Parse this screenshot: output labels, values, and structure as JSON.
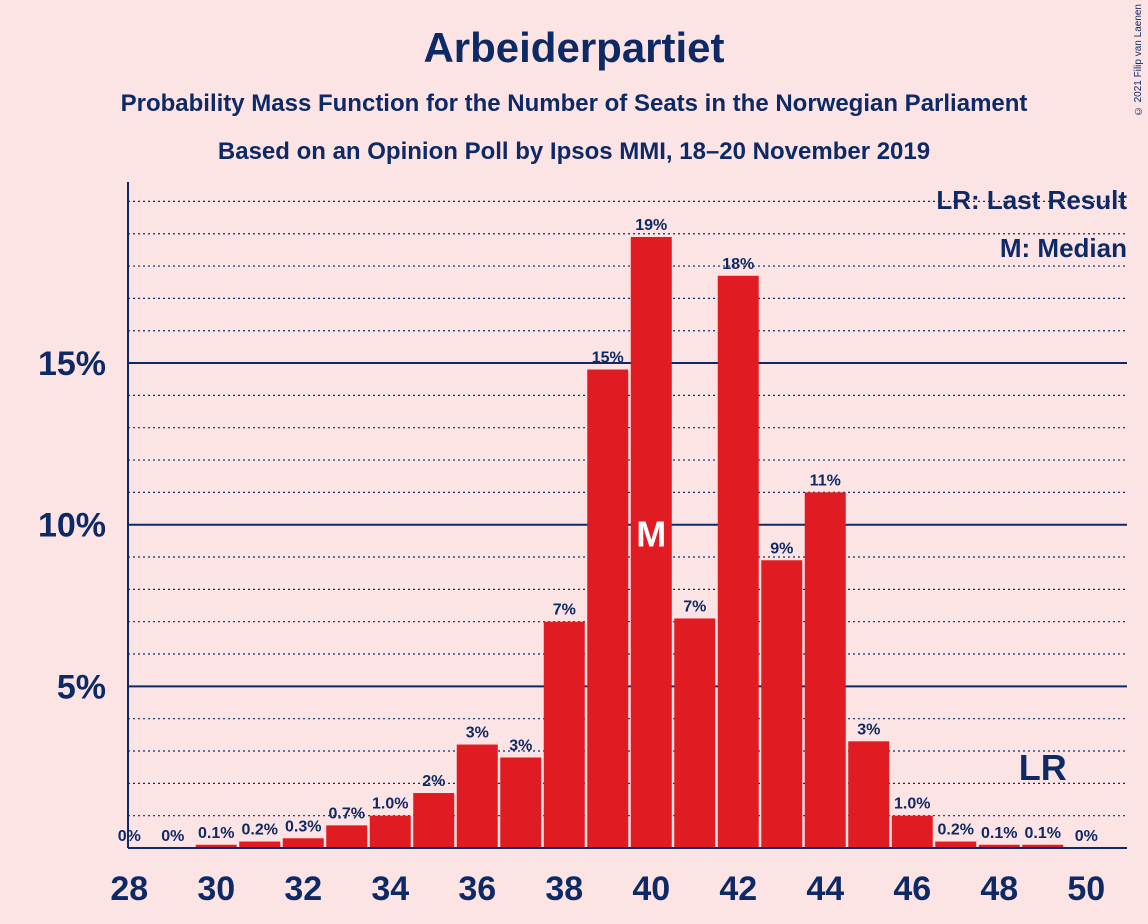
{
  "title": "Arbeiderpartiet",
  "subtitle_1": "Probability Mass Function for the Number of Seats in the Norwegian Parliament",
  "subtitle_2": "Based on an Opinion Poll by Ipsos MMI, 18–20 November 2019",
  "copyright": "© 2021 Filip van Laenen",
  "legend": {
    "last_result": "LR: Last Result",
    "median": "M: Median"
  },
  "markers": {
    "median_label": "M",
    "median_seat": 40,
    "last_result_label": "LR",
    "last_result_seat": 49
  },
  "colors": {
    "background": "#fde4e4",
    "bar": "#e01b22",
    "text": "#0e2a66",
    "axis": "#0e2a66"
  },
  "chart_data": {
    "type": "bar",
    "title": "Arbeiderpartiet",
    "xlabel": "",
    "ylabel": "",
    "x": [
      28,
      29,
      30,
      31,
      32,
      33,
      34,
      35,
      36,
      37,
      38,
      39,
      40,
      41,
      42,
      43,
      44,
      45,
      46,
      47,
      48,
      49,
      50
    ],
    "values": [
      0,
      0,
      0.1,
      0.2,
      0.3,
      0.7,
      1.0,
      1.7,
      3.2,
      2.8,
      7.0,
      14.8,
      18.9,
      7.1,
      17.7,
      8.9,
      11.0,
      3.3,
      1.0,
      0.2,
      0.1,
      0.1,
      0
    ],
    "data_labels": [
      "0%",
      "0%",
      "0.1%",
      "0.2%",
      "0.3%",
      "0.7%",
      "1.0%",
      "2%",
      "3%",
      "3%",
      "7%",
      "15%",
      "19%",
      "7%",
      "18%",
      "9%",
      "11%",
      "3%",
      "1.0%",
      "0.2%",
      "0.1%",
      "0.1%",
      "0%"
    ],
    "x_ticks": [
      28,
      30,
      32,
      34,
      36,
      38,
      40,
      42,
      44,
      46,
      48,
      50
    ],
    "y_ticks": [
      5,
      10,
      15
    ],
    "y_tick_labels": [
      "5%",
      "10%",
      "15%"
    ],
    "ylim": [
      0,
      20.6
    ],
    "minor_grid_step": 1,
    "grid": true,
    "legend_position": "top-right"
  }
}
